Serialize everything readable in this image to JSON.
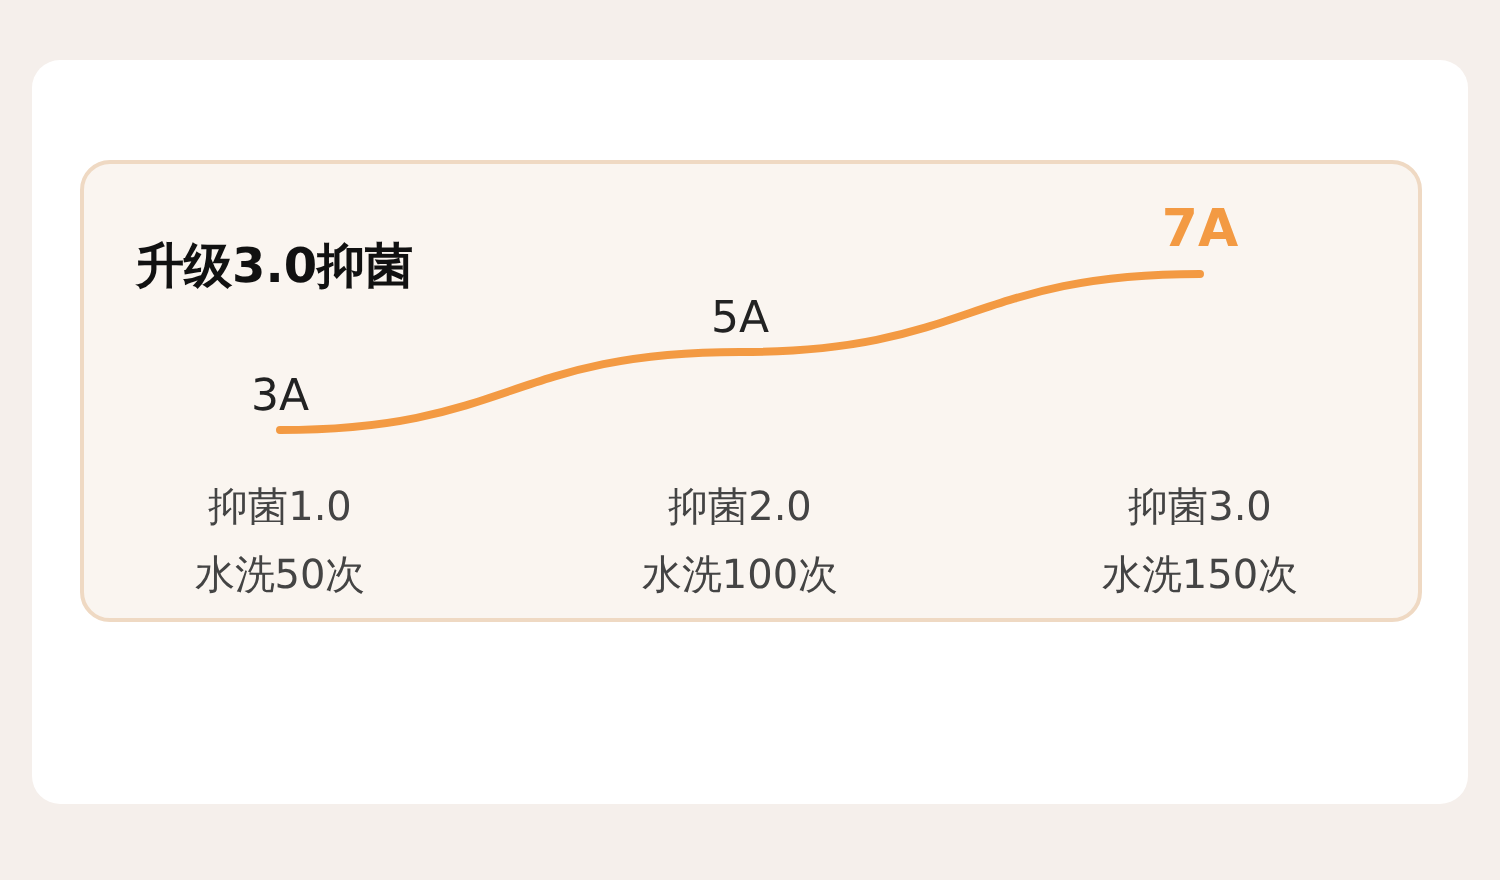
{
  "chart_data": {
    "type": "line",
    "title": "升级3.0抑菌",
    "categories": [
      "抑菌1.0\n水洗50次",
      "抑菌2.0\n水洗100次",
      "抑菌3.0\n水洗150次"
    ],
    "values": [
      3,
      5,
      7
    ],
    "value_labels": [
      "3A",
      "5A",
      "7A"
    ],
    "color": "#f39a43"
  }
}
